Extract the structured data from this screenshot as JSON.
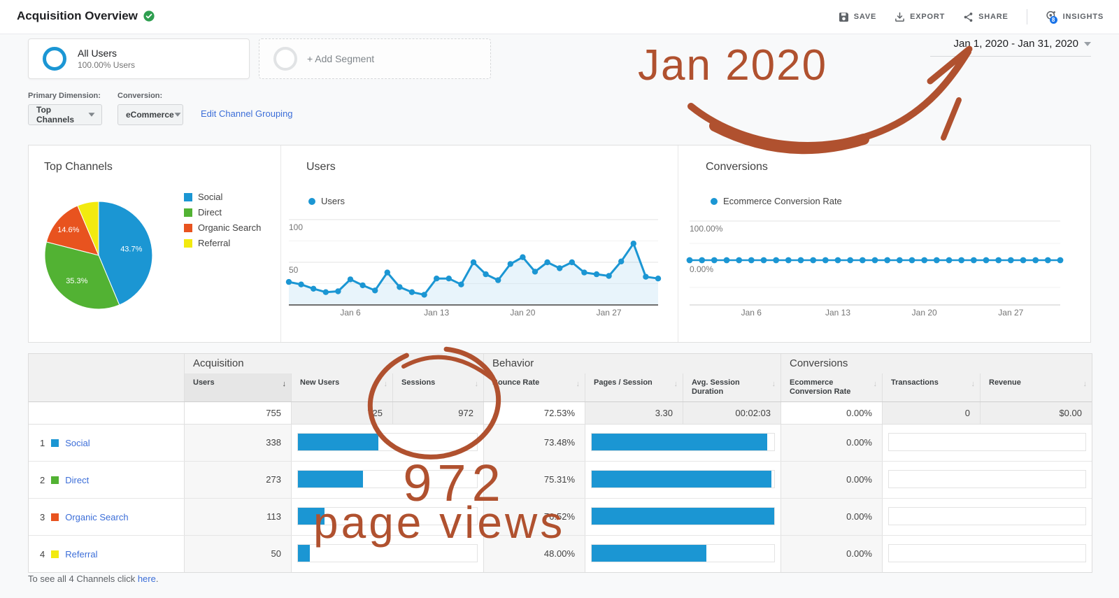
{
  "header": {
    "title": "Acquisition Overview",
    "actions": {
      "save": "SAVE",
      "export": "EXPORT",
      "share": "SHARE",
      "insights": "INSIGHTS"
    },
    "insights_badge": "8"
  },
  "date_range": {
    "label": "Jan 1, 2020 - Jan 31, 2020"
  },
  "segments": {
    "all_users": {
      "title": "All Users",
      "subtitle": "100.00% Users"
    },
    "add": {
      "label": "+ Add Segment"
    }
  },
  "controls": {
    "primary_dimension_label": "Primary Dimension:",
    "primary_dimension_value": "Top Channels",
    "conversion_label": "Conversion:",
    "conversion_value": "eCommerce",
    "edit_link": "Edit Channel Grouping"
  },
  "colors": {
    "blue": "#1b96d3",
    "green": "#52b233",
    "orange": "#e8531f",
    "yellow": "#f2ea0f",
    "annotation": "#b0512f",
    "link": "#3c6ed8",
    "badge_green": "#2e9e4f",
    "insights_badge_blue": "#1a73e8"
  },
  "chart_data": [
    {
      "type": "pie",
      "title": "Top Channels",
      "labels": [
        "Social",
        "Direct",
        "Organic Search",
        "Referral"
      ],
      "values": [
        43.7,
        35.3,
        14.6,
        6.4
      ],
      "slice_labels": [
        "43.7%",
        "35.3%",
        "14.6%",
        ""
      ],
      "colors": [
        "#1b96d3",
        "#52b233",
        "#e8531f",
        "#f2ea0f"
      ],
      "legend_position": "right"
    },
    {
      "type": "line",
      "title": "Users",
      "series_label": "Users",
      "color": "#1b96d3",
      "area": true,
      "ylim": [
        0,
        100
      ],
      "yticks": [
        50,
        100
      ],
      "xticks": [
        "Jan 6",
        "Jan 13",
        "Jan 20",
        "Jan 27"
      ],
      "xtick_days": [
        6,
        13,
        20,
        27
      ],
      "values": [
        27,
        24,
        19,
        15,
        16,
        30,
        23,
        17,
        38,
        21,
        15,
        12,
        31,
        31,
        24,
        50,
        36,
        29,
        48,
        56,
        39,
        50,
        43,
        50,
        38,
        36,
        34,
        51,
        72,
        33,
        31
      ]
    },
    {
      "type": "line",
      "title": "Conversions",
      "series_label": "Ecommerce Conversion Rate",
      "color": "#1b96d3",
      "ylim": [
        0,
        100
      ],
      "yticks": [
        "0.00%",
        "100.00%"
      ],
      "xticks": [
        "Jan 6",
        "Jan 13",
        "Jan 20",
        "Jan 27"
      ],
      "xtick_days": [
        6,
        13,
        20,
        27
      ],
      "values": [
        0,
        0,
        0,
        0,
        0,
        0,
        0,
        0,
        0,
        0,
        0,
        0,
        0,
        0,
        0,
        0,
        0,
        0,
        0,
        0,
        0,
        0,
        0,
        0,
        0,
        0,
        0,
        0,
        0,
        0,
        0
      ]
    }
  ],
  "table": {
    "group_headers": [
      "Acquisition",
      "Behavior",
      "Conversions"
    ],
    "columns": [
      {
        "label": "Users",
        "sorted": true
      },
      {
        "label": "New Users"
      },
      {
        "label": "Sessions"
      },
      {
        "label": "Bounce Rate"
      },
      {
        "label": "Pages / Session"
      },
      {
        "label": "Avg. Session Duration"
      },
      {
        "label": "Ecommerce Conversion Rate"
      },
      {
        "label": "Transactions"
      },
      {
        "label": "Revenue"
      }
    ],
    "totals": [
      "755",
      "725",
      "972",
      "72.53%",
      "3.30",
      "00:02:03",
      "0.00%",
      "0",
      "$0.00"
    ],
    "users_total": 755,
    "max_bounce": 76.52,
    "rows": [
      {
        "rank": "1",
        "channel": "Social",
        "swatch": "#1b96d3",
        "users": 338,
        "bounce_rate": 73.48,
        "bounce_label": "73.48%",
        "ecommerce_rate": "0.00%"
      },
      {
        "rank": "2",
        "channel": "Direct",
        "swatch": "#52b233",
        "users": 273,
        "bounce_rate": 75.31,
        "bounce_label": "75.31%",
        "ecommerce_rate": "0.00%"
      },
      {
        "rank": "3",
        "channel": "Organic Search",
        "swatch": "#e8531f",
        "users": 113,
        "bounce_rate": 76.52,
        "bounce_label": "76.52%",
        "ecommerce_rate": "0.00%"
      },
      {
        "rank": "4",
        "channel": "Referral",
        "swatch": "#f2ea0f",
        "users": 50,
        "bounce_rate": 48.0,
        "bounce_label": "48.00%",
        "ecommerce_rate": "0.00%"
      }
    ]
  },
  "footer": {
    "prefix": "To see all 4 Channels click ",
    "link": "here",
    "suffix": "."
  },
  "annotations": {
    "month_label": "Jan 2020",
    "circled_value": "972",
    "caption": "page views"
  }
}
